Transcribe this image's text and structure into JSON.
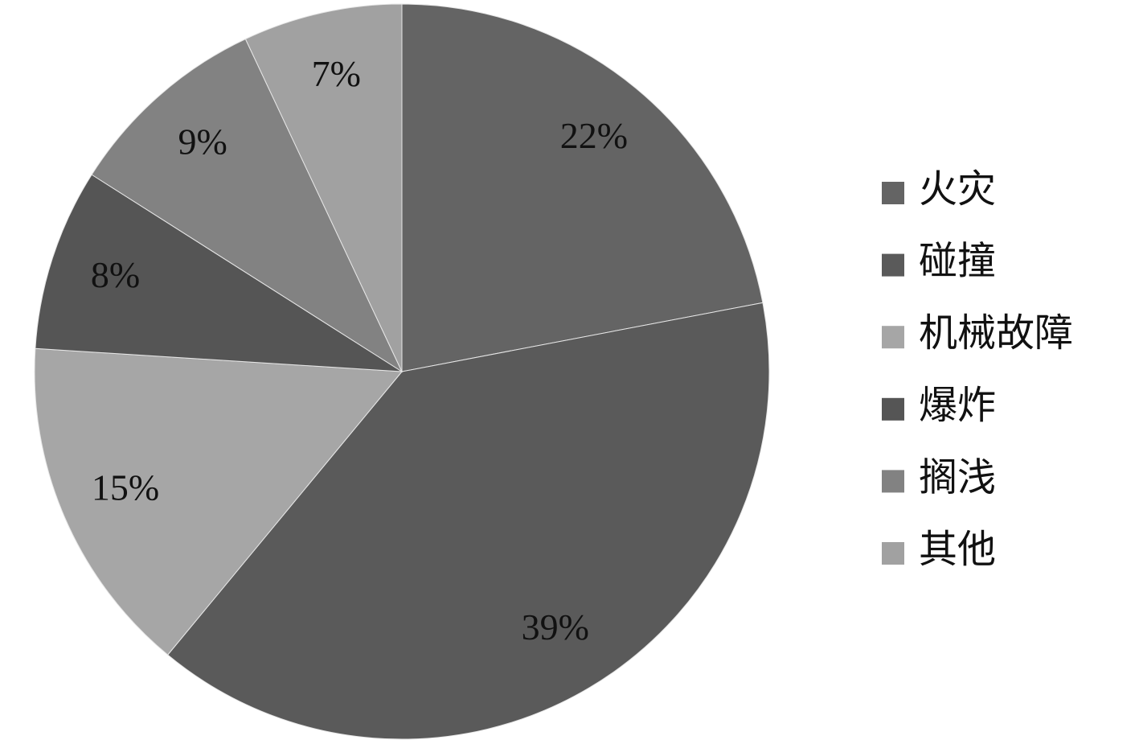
{
  "chart_data": {
    "type": "pie",
    "categories": [
      "火灾",
      "碰撞",
      "机械故障",
      "爆炸",
      "搁浅",
      "其他"
    ],
    "values": [
      22,
      39,
      15,
      8,
      9,
      7
    ],
    "value_labels": [
      "22%",
      "39%",
      "15%",
      "8%",
      "9%",
      "7%"
    ],
    "colors": [
      "#646464",
      "#5a5a5a",
      "#a6a6a6",
      "#555555",
      "#828282",
      "#a1a1a1"
    ],
    "legend": "right"
  }
}
